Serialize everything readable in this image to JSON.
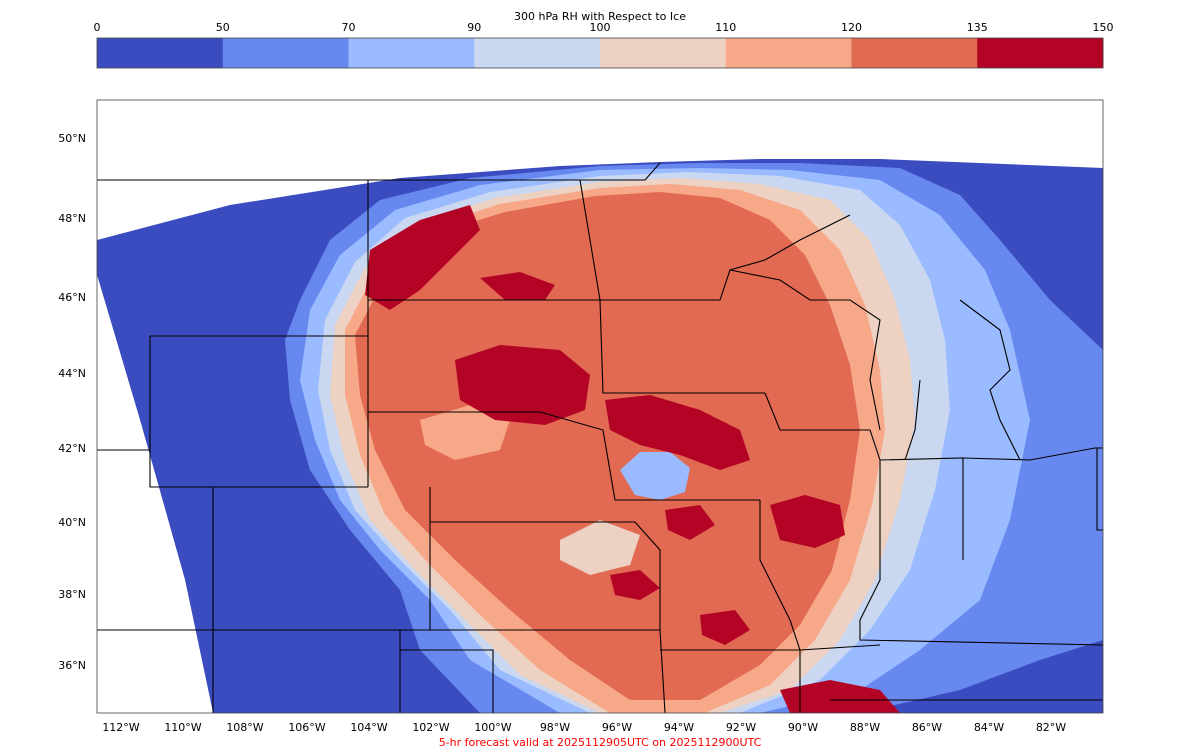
{
  "colorbar": {
    "title": "300 hPa RH with Respect to Ice",
    "ticks": [
      "0",
      "50",
      "70",
      "90",
      "100",
      "110",
      "120",
      "135",
      "150"
    ],
    "colors": [
      "#3b4cc0",
      "#6788ee",
      "#9abbff",
      "#c9d7f0",
      "#edd1c2",
      "#f7a889",
      "#e26952",
      "#b40426"
    ]
  },
  "map": {
    "lat_labels": [
      "50°N",
      "48°N",
      "46°N",
      "44°N",
      "42°N",
      "40°N",
      "38°N",
      "36°N"
    ],
    "lon_labels": [
      "112°W",
      "110°W",
      "108°W",
      "106°W",
      "104°W",
      "102°W",
      "100°W",
      "98°W",
      "96°W",
      "94°W",
      "92°W",
      "90°W",
      "88°W",
      "86°W",
      "84°W",
      "82°W"
    ],
    "background_color": "#ffffff",
    "boundary_color": "#000000"
  },
  "footer": {
    "text": "5-hr forecast valid at 2025112905UTC on 2025112900UTC"
  }
}
